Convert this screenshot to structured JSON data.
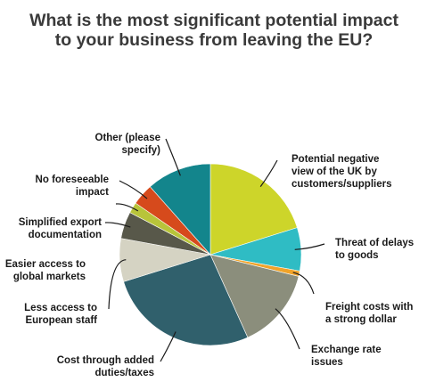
{
  "chart_data": {
    "type": "pie",
    "title": "What is the most significant potential impact to your business from leaving the EU?",
    "slices": [
      {
        "label": "Potential negative view of the UK by customers/suppliers",
        "value": 21,
        "color": "#cdd52a"
      },
      {
        "label": "Threat of delays to goods",
        "value": 8,
        "color": "#2fbcc4"
      },
      {
        "label": "Freight costs with a strong dollar",
        "value": 1,
        "color": "#f0a32a"
      },
      {
        "label": "Exchange rate issues",
        "value": 15,
        "color": "#8b8e7c"
      },
      {
        "label": "Cost through added duties/taxes",
        "value": 28,
        "color": "#30606c"
      },
      {
        "label": "Less access to European staff",
        "value": 8,
        "color": "#d5d3c3"
      },
      {
        "label": "Easier access to global markets",
        "value": 5,
        "color": "#58584a"
      },
      {
        "label": "Simplified export documentation",
        "value": 2,
        "color": "#b8c43a"
      },
      {
        "label": "No foreseeable impact",
        "value": 4,
        "color": "#d64a1c"
      },
      {
        "label": "Other (please specify)",
        "value": 12,
        "color": "#13858c"
      }
    ],
    "legend": "none"
  }
}
